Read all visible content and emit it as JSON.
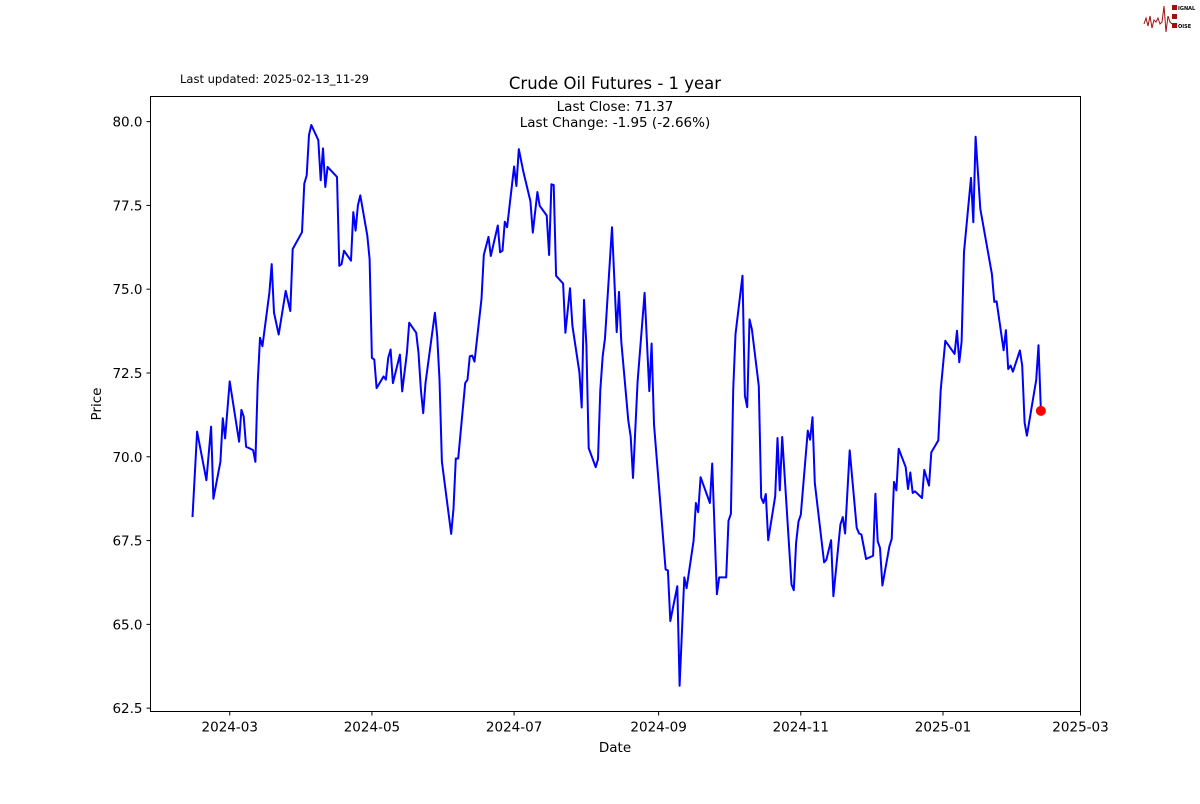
{
  "header": {
    "last_updated": "Last updated: 2025-02-13_11-29",
    "logo_text": "SIGNAL 2 NOISE"
  },
  "chart_data": {
    "type": "line",
    "title": "Crude Oil Futures - 1 year",
    "annotation": [
      "Last Close: 71.37",
      "Last Change: -1.95 (-2.66%)"
    ],
    "xlabel": "Date",
    "ylabel": "Price",
    "xlim": [
      "2024-01-27",
      "2025-03-01"
    ],
    "ylim": [
      62.4,
      80.75
    ],
    "x_ticks": [
      "2024-03",
      "2024-05",
      "2024-07",
      "2024-09",
      "2024-11",
      "2025-01",
      "2025-03"
    ],
    "y_ticks": [
      "62.5",
      "65.0",
      "67.5",
      "70.0",
      "72.5",
      "75.0",
      "77.5",
      "80.0"
    ],
    "grid": false,
    "line_color": "#0000ff",
    "marker_color": "#ff0000",
    "last_point": {
      "date": "2025-02-12",
      "value": 71.37
    },
    "series": [
      {
        "x": [
          "2024-02-14",
          "2024-02-16",
          "2024-02-20",
          "2024-02-22",
          "2024-02-23",
          "2024-02-26",
          "2024-02-27",
          "2024-02-28",
          "2024-03-01",
          "2024-03-05",
          "2024-03-06",
          "2024-03-07",
          "2024-03-08",
          "2024-03-11",
          "2024-03-12",
          "2024-03-13",
          "2024-03-14",
          "2024-03-15",
          "2024-03-18",
          "2024-03-19",
          "2024-03-20",
          "2024-03-22",
          "2024-03-25",
          "2024-03-27",
          "2024-03-28",
          "2024-04-01",
          "2024-04-02",
          "2024-04-03",
          "2024-04-04",
          "2024-04-05",
          "2024-04-08",
          "2024-04-09",
          "2024-04-10",
          "2024-04-11",
          "2024-04-12",
          "2024-04-16",
          "2024-04-17",
          "2024-04-18",
          "2024-04-19",
          "2024-04-22",
          "2024-04-23",
          "2024-04-24",
          "2024-04-25",
          "2024-04-26",
          "2024-04-29",
          "2024-04-30",
          "2024-05-01",
          "2024-05-02",
          "2024-05-03",
          "2024-05-06",
          "2024-05-07",
          "2024-05-08",
          "2024-05-09",
          "2024-05-10",
          "2024-05-13",
          "2024-05-14",
          "2024-05-16",
          "2024-05-17",
          "2024-05-20",
          "2024-05-21",
          "2024-05-22",
          "2024-05-23",
          "2024-05-24",
          "2024-05-28",
          "2024-05-29",
          "2024-05-30",
          "2024-05-31",
          "2024-06-04",
          "2024-06-05",
          "2024-06-06",
          "2024-06-07",
          "2024-06-10",
          "2024-06-11",
          "2024-06-12",
          "2024-06-13",
          "2024-06-14",
          "2024-06-17",
          "2024-06-18",
          "2024-06-20",
          "2024-06-21",
          "2024-06-24",
          "2024-06-25",
          "2024-06-26",
          "2024-06-27",
          "2024-06-28",
          "2024-07-01",
          "2024-07-02",
          "2024-07-03",
          "2024-07-05",
          "2024-07-08",
          "2024-07-09",
          "2024-07-11",
          "2024-07-12",
          "2024-07-15",
          "2024-07-16",
          "2024-07-17",
          "2024-07-18",
          "2024-07-19",
          "2024-07-22",
          "2024-07-23",
          "2024-07-25",
          "2024-07-26",
          "2024-07-29",
          "2024-07-30",
          "2024-07-31",
          "2024-08-01",
          "2024-08-02",
          "2024-08-05",
          "2024-08-06",
          "2024-08-07",
          "2024-08-08",
          "2024-08-09",
          "2024-08-12",
          "2024-08-14",
          "2024-08-15",
          "2024-08-16",
          "2024-08-19",
          "2024-08-20",
          "2024-08-21",
          "2024-08-23",
          "2024-08-26",
          "2024-08-28",
          "2024-08-29",
          "2024-08-30",
          "2024-09-04",
          "2024-09-05",
          "2024-09-06",
          "2024-09-09",
          "2024-09-10",
          "2024-09-12",
          "2024-09-13",
          "2024-09-16",
          "2024-09-17",
          "2024-09-18",
          "2024-09-19",
          "2024-09-23",
          "2024-09-24",
          "2024-09-26",
          "2024-09-27",
          "2024-09-30",
          "2024-10-01",
          "2024-10-02",
          "2024-10-03",
          "2024-10-04",
          "2024-10-07",
          "2024-10-08",
          "2024-10-09",
          "2024-10-10",
          "2024-10-11",
          "2024-10-14",
          "2024-10-15",
          "2024-10-16",
          "2024-10-17",
          "2024-10-18",
          "2024-10-21",
          "2024-10-22",
          "2024-10-23",
          "2024-10-24",
          "2024-10-28",
          "2024-10-29",
          "2024-10-30",
          "2024-10-31",
          "2024-11-01",
          "2024-11-04",
          "2024-11-05",
          "2024-11-06",
          "2024-11-07",
          "2024-11-11",
          "2024-11-12",
          "2024-11-14",
          "2024-11-15",
          "2024-11-18",
          "2024-11-19",
          "2024-11-20",
          "2024-11-22",
          "2024-11-25",
          "2024-11-26",
          "2024-11-27",
          "2024-11-29",
          "2024-12-02",
          "2024-12-03",
          "2024-12-04",
          "2024-12-05",
          "2024-12-06",
          "2024-12-09",
          "2024-12-10",
          "2024-12-11",
          "2024-12-12",
          "2024-12-13",
          "2024-12-16",
          "2024-12-17",
          "2024-12-18",
          "2024-12-19",
          "2024-12-20",
          "2024-12-23",
          "2024-12-24",
          "2024-12-26",
          "2024-12-27",
          "2024-12-30",
          "2024-12-31",
          "2025-01-02",
          "2025-01-06",
          "2025-01-07",
          "2025-01-08",
          "2025-01-09",
          "2025-01-10",
          "2025-01-13",
          "2025-01-14",
          "2025-01-15",
          "2025-01-17",
          "2025-01-22",
          "2025-01-23",
          "2025-01-24",
          "2025-01-27",
          "2025-01-28",
          "2025-01-29",
          "2025-01-30",
          "2025-01-31",
          "2025-02-03",
          "2025-02-04",
          "2025-02-05",
          "2025-02-06",
          "2025-02-10",
          "2025-02-11",
          "2025-02-12"
        ],
        "y": [
          68.2,
          70.75,
          69.3,
          70.9,
          68.75,
          69.85,
          71.15,
          70.55,
          72.25,
          70.45,
          71.4,
          71.2,
          70.3,
          70.2,
          69.85,
          72.2,
          73.55,
          73.3,
          74.9,
          75.75,
          74.3,
          73.65,
          74.95,
          74.35,
          76.2,
          76.7,
          78.15,
          78.4,
          79.6,
          79.9,
          79.45,
          78.25,
          79.2,
          78.05,
          78.65,
          78.35,
          75.7,
          75.75,
          76.15,
          75.85,
          77.3,
          76.75,
          77.5,
          77.8,
          76.6,
          75.9,
          72.95,
          72.9,
          72.05,
          72.4,
          72.3,
          72.95,
          73.2,
          72.2,
          73.05,
          71.95,
          73.1,
          74.0,
          73.7,
          73.1,
          72.0,
          71.3,
          72.2,
          74.3,
          73.6,
          72.3,
          69.85,
          67.7,
          68.45,
          69.95,
          69.95,
          72.2,
          72.3,
          73.0,
          73.02,
          72.84,
          74.71,
          76.02,
          76.56,
          75.99,
          76.9,
          76.1,
          76.15,
          77.01,
          76.85,
          78.66,
          78.08,
          79.18,
          78.5,
          77.63,
          76.69,
          77.9,
          77.49,
          77.2,
          76.02,
          78.13,
          78.11,
          75.4,
          75.17,
          73.7,
          75.03,
          73.91,
          72.52,
          71.47,
          74.68,
          73.32,
          70.26,
          69.69,
          69.93,
          71.99,
          73.0,
          73.54,
          76.85,
          73.72,
          74.92,
          73.43,
          71.08,
          70.6,
          69.37,
          72.25,
          74.89,
          71.96,
          73.38,
          70.97,
          66.64,
          66.61,
          65.1,
          66.14,
          63.17,
          66.4,
          66.08,
          67.5,
          68.62,
          68.35,
          69.39,
          68.62,
          69.8,
          65.9,
          66.4,
          66.4,
          68.09,
          68.3,
          71.99,
          73.66,
          75.4,
          71.82,
          71.48,
          74.1,
          73.8,
          72.11,
          68.78,
          68.62,
          68.89,
          67.51,
          68.82,
          70.56,
          69.0,
          70.59,
          66.19,
          66.02,
          67.43,
          68.07,
          68.27,
          70.78,
          70.51,
          71.18,
          69.22,
          66.85,
          66.93,
          67.51,
          65.84,
          67.98,
          68.2,
          67.71,
          70.19,
          67.88,
          67.71,
          67.68,
          66.95,
          67.05,
          68.9,
          67.48,
          67.28,
          66.16,
          67.33,
          67.55,
          69.25,
          69.0,
          70.24,
          69.69,
          69.04,
          69.53,
          68.92,
          68.97,
          68.77,
          69.61,
          69.14,
          70.13,
          70.49,
          71.99,
          73.46,
          73.07,
          73.76,
          72.82,
          73.43,
          76.11,
          78.32,
          77.0,
          79.55,
          77.4,
          75.45,
          74.62,
          74.64,
          73.18,
          73.78,
          72.62,
          72.72,
          72.54,
          73.17,
          72.72,
          71.02,
          70.63,
          72.29,
          73.33,
          71.37
        ]
      }
    ]
  }
}
